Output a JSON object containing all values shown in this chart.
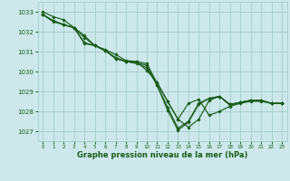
{
  "bg_color": "#cce8ea",
  "grid_color": "#aacfcf",
  "line_color": "#1a5c1a",
  "text_color": "#1a5c1a",
  "xlabel": "Graphe pression niveau de la mer (hPa)",
  "xlim": [
    -0.5,
    23.5
  ],
  "ylim": [
    1026.5,
    1033.5
  ],
  "yticks": [
    1027,
    1028,
    1029,
    1030,
    1031,
    1032,
    1033
  ],
  "xticks": [
    0,
    1,
    2,
    3,
    4,
    5,
    6,
    7,
    8,
    9,
    10,
    11,
    12,
    13,
    14,
    15,
    16,
    17,
    18,
    19,
    20,
    21,
    22,
    23
  ],
  "series": [
    [
      1033.0,
      1032.75,
      1032.6,
      1032.2,
      1031.45,
      1031.3,
      1031.1,
      1030.85,
      1030.55,
      1030.5,
      1030.05,
      1029.45,
      1028.5,
      1027.6,
      1028.4,
      1028.6,
      1027.8,
      1028.0,
      1028.25,
      1028.4,
      1028.5,
      1028.5,
      1028.4,
      1028.4
    ],
    [
      1032.85,
      1032.5,
      1032.35,
      1032.2,
      1031.8,
      1031.3,
      1031.05,
      1030.7,
      1030.5,
      1030.5,
      1030.4,
      1029.4,
      1028.5,
      1027.6,
      1027.2,
      1027.6,
      1028.55,
      1028.75,
      1028.35,
      1028.45,
      1028.55,
      1028.55,
      1028.4,
      1028.4
    ],
    [
      1032.85,
      1032.55,
      1032.35,
      1032.2,
      1031.7,
      1031.3,
      1031.05,
      1030.65,
      1030.5,
      1030.45,
      1030.3,
      1029.3,
      1028.2,
      1027.15,
      1027.5,
      1028.4,
      1028.65,
      1028.75,
      1028.35,
      1028.45,
      1028.55,
      1028.55,
      1028.4,
      1028.4
    ],
    [
      1032.85,
      1032.55,
      1032.35,
      1032.2,
      1031.4,
      1031.3,
      1031.05,
      1030.65,
      1030.5,
      1030.4,
      1030.2,
      1029.3,
      1028.05,
      1027.05,
      1027.45,
      1028.35,
      1028.65,
      1028.75,
      1028.3,
      1028.45,
      1028.55,
      1028.55,
      1028.4,
      1028.4
    ]
  ]
}
